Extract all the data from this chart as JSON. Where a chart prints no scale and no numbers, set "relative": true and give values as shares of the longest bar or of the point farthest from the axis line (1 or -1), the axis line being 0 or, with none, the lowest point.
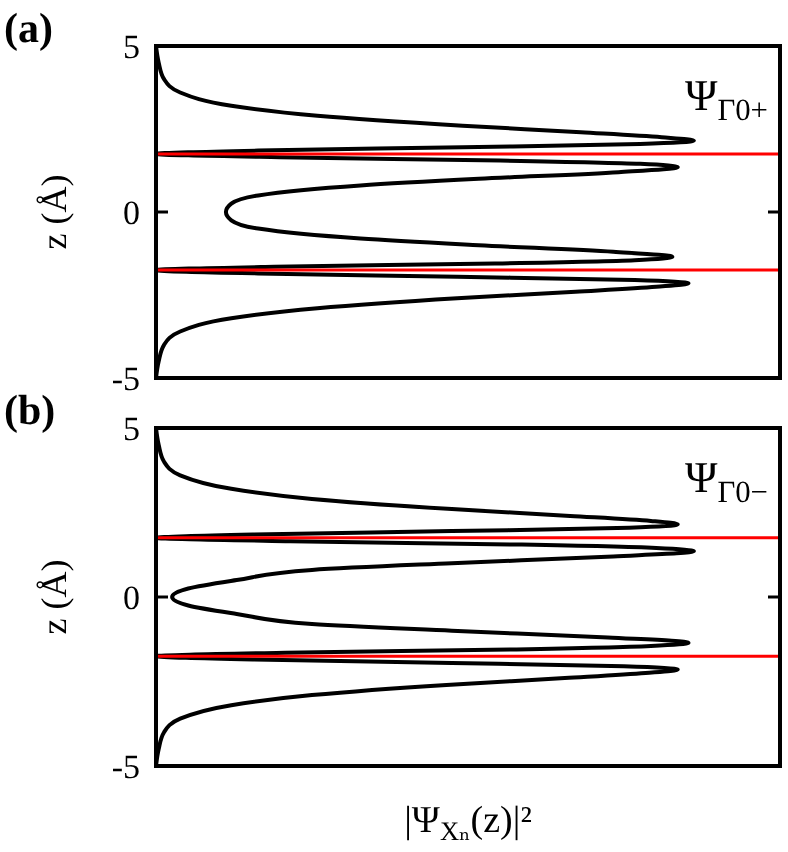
{
  "chart_data": [
    {
      "type": "line",
      "title": "(a)",
      "ylabel": "z (Å)",
      "annotations": [
        "Ψ$_{Γ0+}$"
      ],
      "orientation": "horizontal",
      "relative": true,
      "tick_labels": "y",
      "x": [
        5,
        4.5,
        4,
        3.6,
        3.2,
        2.9,
        2.6,
        2.4,
        2.25,
        2.15,
        2.05,
        1.95,
        1.85,
        1.75,
        1.65,
        1.55,
        1.45,
        1.35,
        1.2,
        1,
        0.8,
        0.5,
        0.25,
        0,
        -0.25,
        -0.5,
        -0.8,
        -1,
        -1.2,
        -1.35,
        -1.45,
        -1.55,
        -1.65,
        -1.75,
        -1.85,
        -1.95,
        -2.05,
        -2.15,
        -2.25,
        -2.4,
        -2.6,
        -2.9,
        -3.2,
        -3.6,
        -4,
        -4.5,
        -5
      ],
      "series": [
        {
          "color": "#000000",
          "values": [
            0,
            0.005,
            0.015,
            0.045,
            0.14,
            0.3,
            0.57,
            0.79,
            0.94,
            1,
            0.9,
            0.57,
            0.19,
            0,
            0.23,
            0.64,
            0.9,
            0.97,
            0.86,
            0.6,
            0.38,
            0.19,
            0.14,
            0.13,
            0.14,
            0.19,
            0.38,
            0.6,
            0.85,
            0.96,
            0.89,
            0.63,
            0.22,
            0,
            0.19,
            0.56,
            0.89,
            0.99,
            0.93,
            0.78,
            0.56,
            0.3,
            0.14,
            0.045,
            0.015,
            0.005,
            0
          ]
        }
      ],
      "ylim": [
        -5,
        5
      ],
      "yticks": [
        -5,
        0,
        5
      ],
      "ref_lines": [
        {
          "axis": "y",
          "value": 1.75,
          "color": "#ff0000"
        },
        {
          "axis": "y",
          "value": -1.75,
          "color": "#ff0000"
        }
      ]
    },
    {
      "type": "line",
      "title": "(b)",
      "xlabel": "|Ψ$_{Xₙ}$(z)|²",
      "ylabel": "z (Å)",
      "annotations": [
        "Ψ$_{Γ0−}$"
      ],
      "orientation": "horizontal",
      "relative": true,
      "tick_labels": "y",
      "x": [
        5,
        4.5,
        4,
        3.6,
        3.2,
        2.9,
        2.6,
        2.4,
        2.25,
        2.15,
        2.05,
        1.95,
        1.85,
        1.75,
        1.65,
        1.55,
        1.45,
        1.35,
        1.2,
        1,
        0.8,
        0.5,
        0.25,
        0,
        -0.25,
        -0.5,
        -0.8,
        -1,
        -1.2,
        -1.35,
        -1.45,
        -1.55,
        -1.65,
        -1.75,
        -1.85,
        -1.95,
        -2.05,
        -2.15,
        -2.25,
        -2.4,
        -2.6,
        -2.9,
        -3.2,
        -3.6,
        -4,
        -4.5,
        -5
      ],
      "series": [
        {
          "color": "#000000",
          "values": [
            0,
            0.005,
            0.015,
            0.045,
            0.14,
            0.29,
            0.55,
            0.77,
            0.92,
            0.97,
            0.88,
            0.55,
            0.18,
            0,
            0.25,
            0.68,
            0.93,
            1,
            0.85,
            0.55,
            0.29,
            0.15,
            0.06,
            0.03,
            0.06,
            0.15,
            0.29,
            0.55,
            0.84,
            0.99,
            0.92,
            0.67,
            0.24,
            0,
            0.18,
            0.55,
            0.87,
            0.97,
            0.91,
            0.76,
            0.54,
            0.29,
            0.14,
            0.045,
            0.015,
            0.005,
            0
          ]
        }
      ],
      "ylim": [
        -5,
        5
      ],
      "yticks": [
        -5,
        0,
        5
      ],
      "ref_lines": [
        {
          "axis": "y",
          "value": 1.75,
          "color": "#ff0000"
        },
        {
          "axis": "y",
          "value": -1.75,
          "color": "#ff0000"
        }
      ]
    }
  ]
}
